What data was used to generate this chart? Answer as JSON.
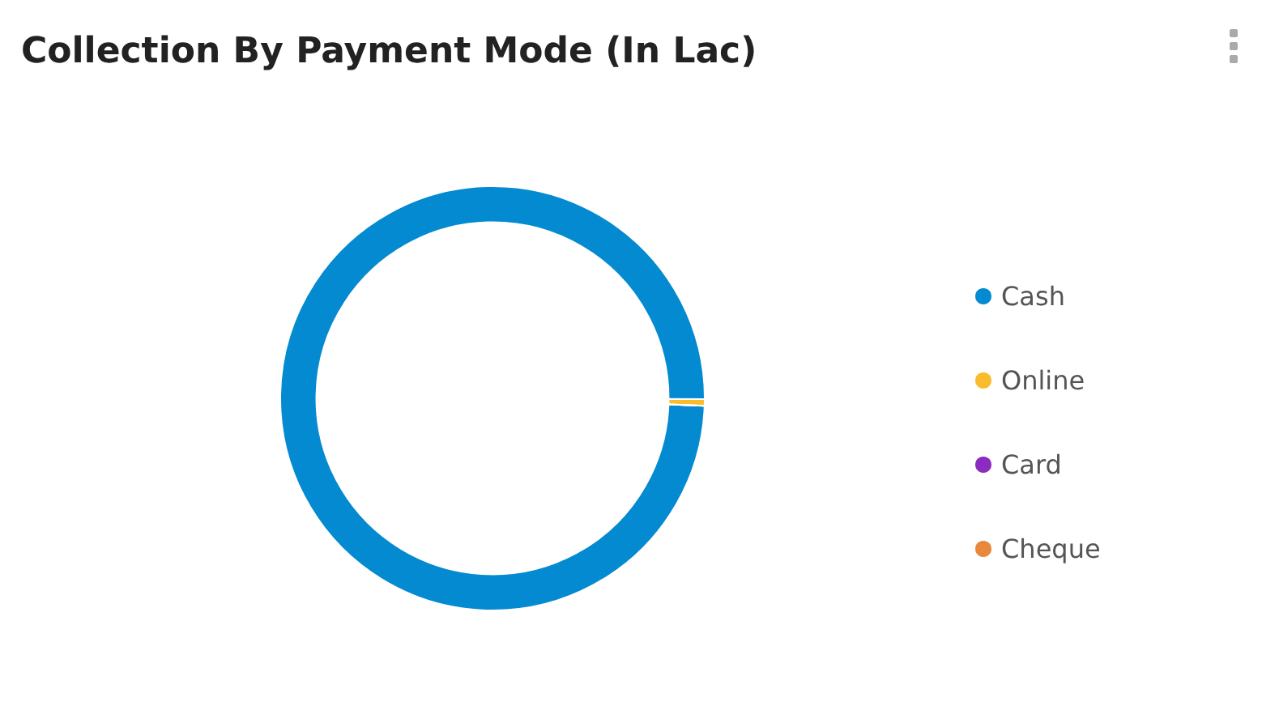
{
  "chart_data": {
    "type": "donut",
    "title": "Collection By Payment Mode (In Lac)",
    "categories": [
      "Cash",
      "Online",
      "Card",
      "Cheque"
    ],
    "values": [
      99.5,
      0.5,
      0,
      0
    ],
    "colors": [
      "#038ad0",
      "#f9bc2c",
      "#8b2bbf",
      "#e9873a"
    ],
    "legend": "right"
  }
}
